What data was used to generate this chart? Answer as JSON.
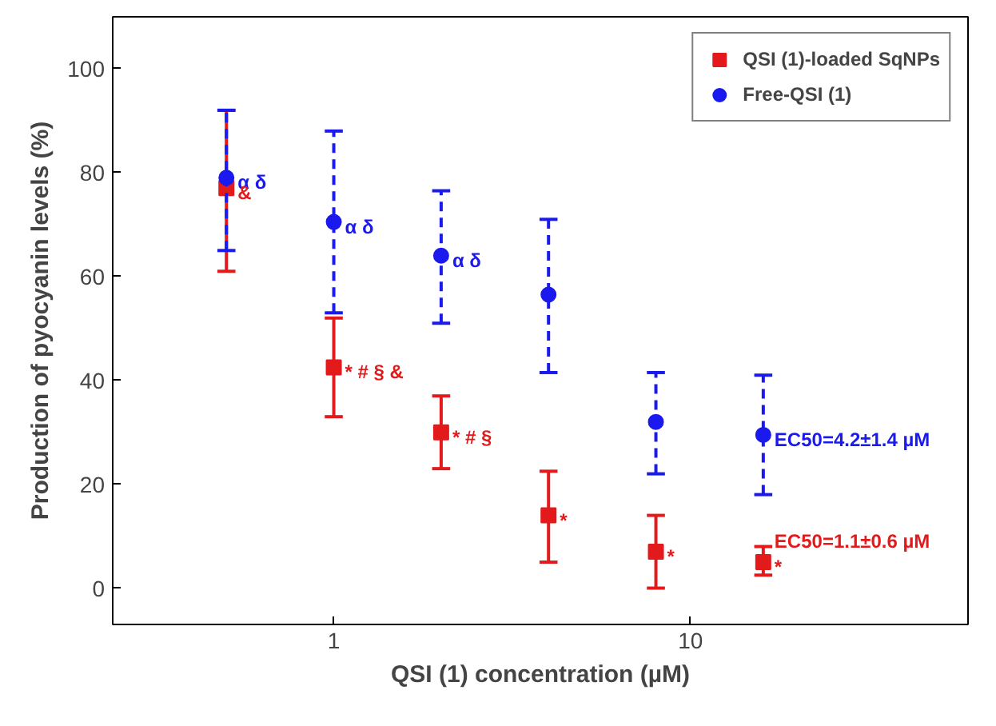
{
  "chart_data": {
    "type": "scatter",
    "xlabel": "QSI (1) concentration (µM)",
    "ylabel": "Production of pyocyanin levels (%)",
    "x": [
      0.5,
      1,
      2,
      4,
      8,
      16
    ],
    "series": [
      {
        "name": "QSI (1)-loaded SqNPs",
        "color": "#e31a1c",
        "marker": "square",
        "line_style": "solid",
        "values": [
          77,
          42.5,
          30,
          14,
          7,
          5
        ],
        "errors": [
          [
            61,
            92
          ],
          [
            33,
            52
          ],
          [
            23,
            37
          ],
          [
            5,
            22.5
          ],
          [
            0,
            14
          ],
          [
            2.5,
            8
          ]
        ]
      },
      {
        "name": "Free-QSI (1)",
        "color": "#1a1aee",
        "marker": "circle",
        "line_style": "dashed",
        "values": [
          79,
          70.5,
          64,
          56.5,
          32,
          29.5
        ],
        "errors": [
          [
            65,
            92
          ],
          [
            53,
            88
          ],
          [
            51,
            76.5
          ],
          [
            41.5,
            71
          ],
          [
            22,
            41.5
          ],
          [
            18,
            41
          ]
        ]
      }
    ],
    "annotations": [
      {
        "text": "α δ",
        "x": 0.5,
        "y": 79
      },
      {
        "text": "&",
        "x": 0.5,
        "y": 77
      },
      {
        "text": "α δ",
        "x": 1,
        "y": 70.5
      },
      {
        "text": "* # § &",
        "x": 1,
        "y": 42.5
      },
      {
        "text": "α δ",
        "x": 2,
        "y": 64
      },
      {
        "text": "* # §",
        "x": 2,
        "y": 30
      },
      {
        "text": "*",
        "x": 4,
        "y": 14
      },
      {
        "text": "*",
        "x": 8,
        "y": 7
      },
      {
        "text": "*",
        "x": 16,
        "y": 5
      },
      {
        "text": "EC50=4.2±1.4 µM",
        "x": 16,
        "y": 29.5
      },
      {
        "text": "EC50=1.1±0.6 µM",
        "x": 16,
        "y": 5
      }
    ],
    "log": "x",
    "xlim": [
      0.24,
      60
    ],
    "xticks": [
      1,
      10
    ],
    "ylim": [
      -7,
      110
    ],
    "yticks": [
      0,
      20,
      40,
      60,
      80,
      100
    ],
    "grid": false,
    "legend": "top right"
  }
}
